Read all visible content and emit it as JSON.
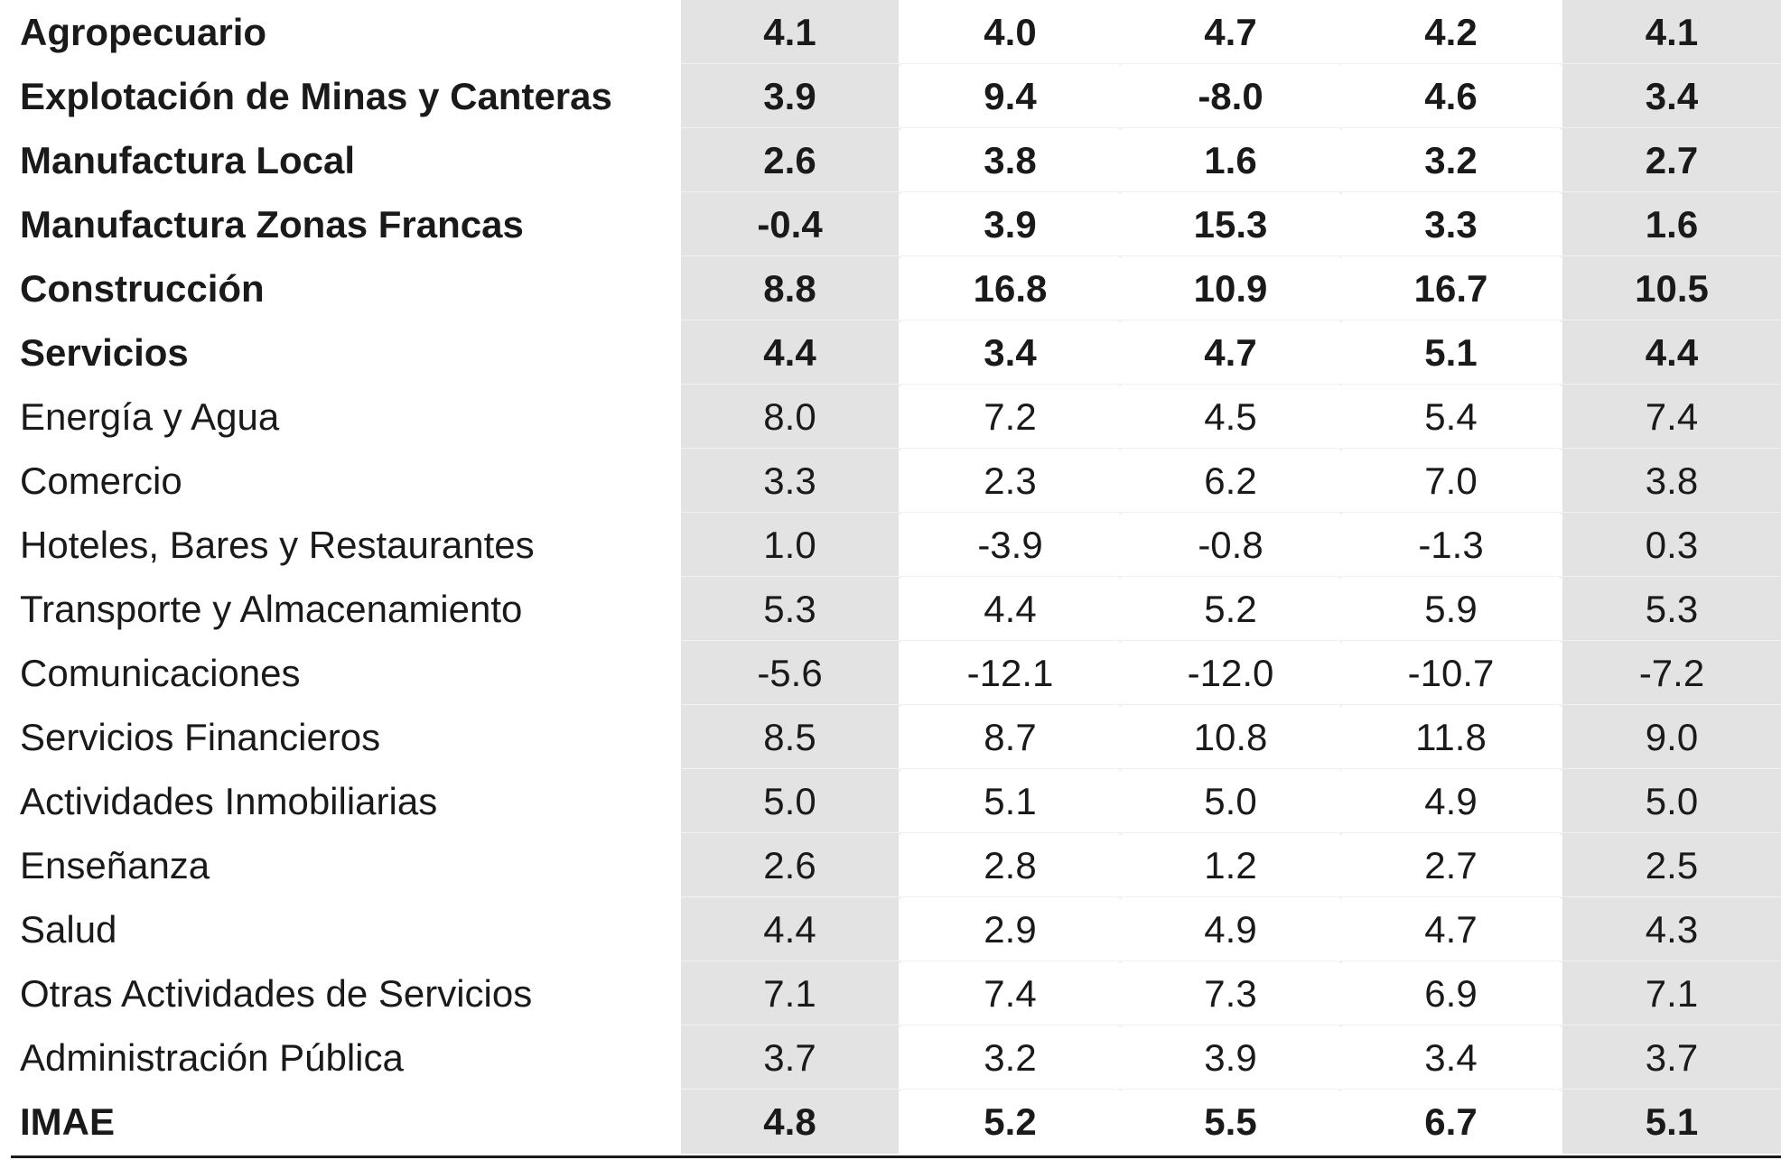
{
  "table": {
    "rows": [
      {
        "label": "Agropecuario",
        "bold": true,
        "values": [
          "4.1",
          "4.0",
          "4.7",
          "4.2",
          "4.1"
        ]
      },
      {
        "label": "Explotación de Minas y Canteras",
        "bold": true,
        "values": [
          "3.9",
          "9.4",
          "-8.0",
          "4.6",
          "3.4"
        ]
      },
      {
        "label": "Manufactura Local",
        "bold": true,
        "values": [
          "2.6",
          "3.8",
          "1.6",
          "3.2",
          "2.7"
        ]
      },
      {
        "label": "Manufactura Zonas Francas",
        "bold": true,
        "values": [
          "-0.4",
          "3.9",
          "15.3",
          "3.3",
          "1.6"
        ]
      },
      {
        "label": "Construcción",
        "bold": true,
        "values": [
          "8.8",
          "16.8",
          "10.9",
          "16.7",
          "10.5"
        ]
      },
      {
        "label": "Servicios",
        "bold": true,
        "values": [
          "4.4",
          "3.4",
          "4.7",
          "5.1",
          "4.4"
        ]
      },
      {
        "label": "Energía y Agua",
        "bold": false,
        "values": [
          "8.0",
          "7.2",
          "4.5",
          "5.4",
          "7.4"
        ]
      },
      {
        "label": "Comercio",
        "bold": false,
        "values": [
          "3.3",
          "2.3",
          "6.2",
          "7.0",
          "3.8"
        ]
      },
      {
        "label": "Hoteles, Bares y Restaurantes",
        "bold": false,
        "values": [
          "1.0",
          "-3.9",
          "-0.8",
          "-1.3",
          "0.3"
        ]
      },
      {
        "label": "Transporte y Almacenamiento",
        "bold": false,
        "values": [
          "5.3",
          "4.4",
          "5.2",
          "5.9",
          "5.3"
        ]
      },
      {
        "label": "Comunicaciones",
        "bold": false,
        "values": [
          "-5.6",
          "-12.1",
          "-12.0",
          "-10.7",
          "-7.2"
        ]
      },
      {
        "label": "Servicios Financieros",
        "bold": false,
        "values": [
          "8.5",
          "8.7",
          "10.8",
          "11.8",
          "9.0"
        ]
      },
      {
        "label": "Actividades Inmobiliarias",
        "bold": false,
        "values": [
          "5.0",
          "5.1",
          "5.0",
          "4.9",
          "5.0"
        ]
      },
      {
        "label": "Enseñanza",
        "bold": false,
        "values": [
          "2.6",
          "2.8",
          "1.2",
          "2.7",
          "2.5"
        ]
      },
      {
        "label": "Salud",
        "bold": false,
        "values": [
          "4.4",
          "2.9",
          "4.9",
          "4.7",
          "4.3"
        ]
      },
      {
        "label": "Otras Actividades de Servicios",
        "bold": false,
        "values": [
          "7.1",
          "7.4",
          "7.3",
          "6.9",
          "7.1"
        ]
      },
      {
        "label": "Administración Pública",
        "bold": false,
        "values": [
          "3.7",
          "3.2",
          "3.9",
          "3.4",
          "3.7"
        ]
      },
      {
        "label": "IMAE",
        "bold": true,
        "values": [
          "4.8",
          "5.2",
          "5.5",
          "6.7",
          "5.1"
        ]
      }
    ]
  },
  "colors": {
    "gray_column": "#e3e3e4",
    "text": "#1a1a1a",
    "rule": "#1a1a1a"
  }
}
